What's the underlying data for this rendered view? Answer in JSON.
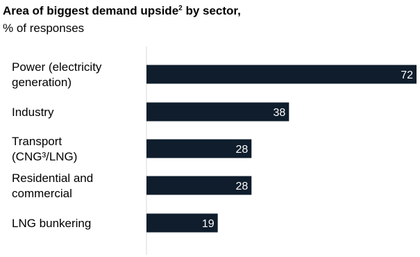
{
  "header": {
    "title_main": "Area of biggest demand upside",
    "title_sup": "2",
    "title_tail": " by sector,",
    "subtitle": "% of responses"
  },
  "chart_data": {
    "type": "bar",
    "orientation": "horizontal",
    "title": "Area of biggest demand upside² by sector,",
    "subtitle": "% of responses",
    "categories": [
      "Power (electricity generation)",
      "Industry",
      "Transport (CNG³/LNG)",
      "Residential and commercial",
      "LNG bunkering"
    ],
    "category_label_lines": [
      [
        "Power (electricity",
        "generation)"
      ],
      [
        "Industry"
      ],
      [
        "Transport",
        "(CNG³/LNG)"
      ],
      [
        "Residential and",
        "commercial"
      ],
      [
        "LNG bunkering"
      ]
    ],
    "values": [
      72,
      38,
      28,
      28,
      19
    ],
    "xlim": [
      0,
      72
    ],
    "bar_color": "#0f1d2c",
    "value_label_color": "#ffffff",
    "axis_line_color": "#d9d9d9",
    "grid": false,
    "legend": "none"
  }
}
